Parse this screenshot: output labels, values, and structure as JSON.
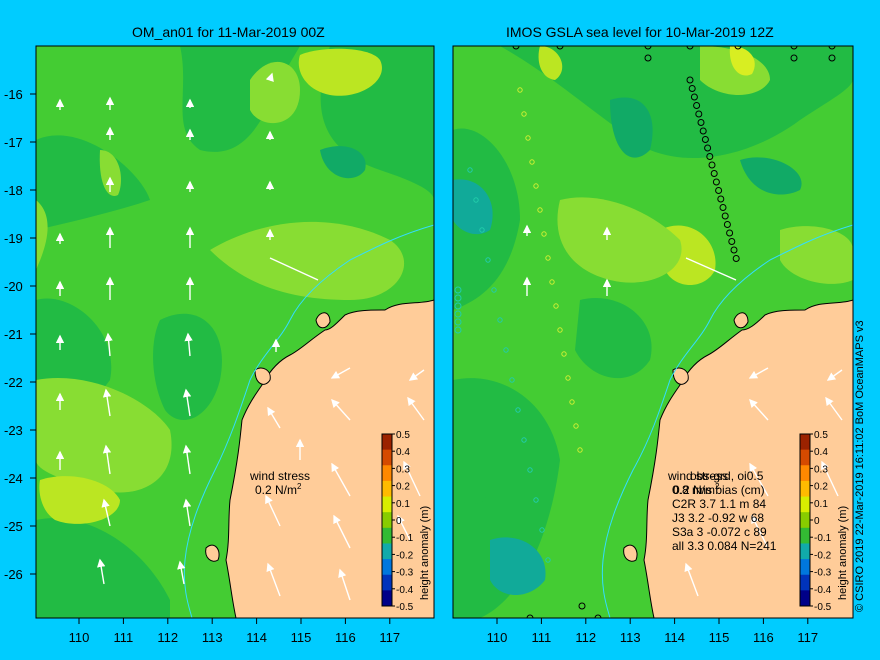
{
  "left_panel": {
    "title": "OM_an01 for 11-Mar-2019 00Z",
    "wind_label": "wind stress",
    "wind_scale": "0.2 N/m",
    "wind_scale_sup": "2"
  },
  "right_panel": {
    "title": "IMOS GSLA sea level  for 10-Mar-2019 12Z",
    "wind_label": "wind stress",
    "wind_scale": "0.2 N/m",
    "wind_scale_sup": "2",
    "stats_header": "obs-grd, oi0.5",
    "stats_subheader": "0.8 rms bias (cm)",
    "stats_rows": [
      "C2R   3.7 1.1 m 84",
      "J3     3.2 -0.92 w 68",
      "S3a    3 -0.072 c 89",
      "all   3.3 0.084 N=241"
    ]
  },
  "map_axes": {
    "lon_ticks": [
      "110",
      "111",
      "112",
      "113",
      "114",
      "115",
      "116",
      "117"
    ],
    "lat_ticks": [
      "-16",
      "-17",
      "-18",
      "-19",
      "-20",
      "-21",
      "-22",
      "-23",
      "-24",
      "-25",
      "-26"
    ]
  },
  "colorbar": {
    "label": "height anomaly (m)",
    "ticks": [
      "0.5",
      "0.4",
      "0.3",
      "0.2",
      "0.1",
      "0",
      "-0.1",
      "-0.2",
      "-0.3",
      "-0.4",
      "-0.5"
    ],
    "colors": [
      "#9b2200",
      "#d54a00",
      "#ff8800",
      "#ffbb00",
      "#d8ee00",
      "#88cc00",
      "#33bb33",
      "#11aaaa",
      "#0077dd",
      "#0033bb",
      "#000088"
    ]
  },
  "credit": "© CSIRO 2019   22-Mar-2019 16:11:02 BoM OceanMAPS v3"
}
